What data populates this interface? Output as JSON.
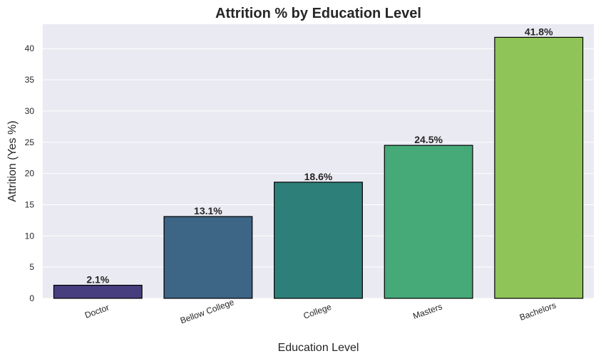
{
  "chart_data": {
    "type": "bar",
    "title": "Attrition % by Education Level",
    "xlabel": "Education Level",
    "ylabel": "Attrition (Yes %)",
    "categories": [
      "Doctor",
      "Bellow College",
      "College",
      "Masters",
      "Bachelors"
    ],
    "values": [
      2.1,
      13.1,
      18.6,
      24.5,
      41.8
    ],
    "data_labels": [
      "2.1%",
      "13.1%",
      "18.6%",
      "24.5%",
      "41.8%"
    ],
    "ylim": [
      0,
      43.9
    ],
    "yticks": [
      0,
      5,
      10,
      15,
      20,
      25,
      30,
      35,
      40
    ],
    "grid": true,
    "colors": [
      "#463e7f",
      "#3c6586",
      "#2d8079",
      "#45a978",
      "#8fc558"
    ],
    "plot_background": "#eaeaf2"
  }
}
